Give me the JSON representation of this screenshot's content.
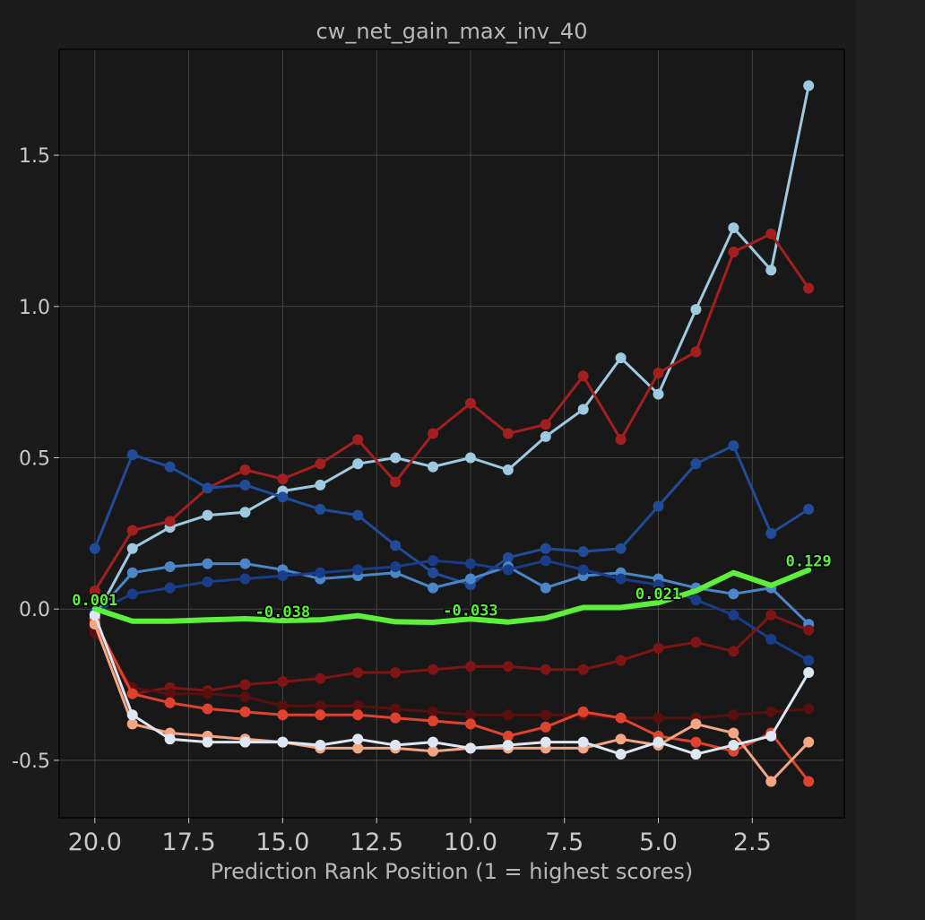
{
  "chart_data": {
    "type": "line",
    "title": "cw_net_gain_max_inv_40",
    "xlabel": "Prediction Rank Position (1 = highest scores)",
    "ylabel": "",
    "x_inverted": true,
    "xlim": [
      20.95,
      0.05
    ],
    "ylim": [
      -0.69,
      1.85
    ],
    "xticks": [
      "20.0",
      "17.5",
      "15.0",
      "12.5",
      "10.0",
      "7.5",
      "5.0",
      "2.5"
    ],
    "xtick_values": [
      20,
      17.5,
      15,
      12.5,
      10,
      7.5,
      5,
      2.5
    ],
    "yticks": [
      "1.5",
      "1.0",
      "0.5",
      "0.0",
      "-0.5"
    ],
    "ytick_values": [
      1.5,
      1.0,
      0.5,
      0.0,
      -0.5
    ],
    "grid": true,
    "x": [
      20,
      19,
      18,
      17,
      16,
      15,
      14,
      13,
      12,
      11,
      10,
      9,
      8,
      7,
      6,
      5,
      4,
      3,
      2,
      1
    ],
    "series": [
      {
        "color": "#9ecae1",
        "values": [
          -0.03,
          0.2,
          0.27,
          0.31,
          0.32,
          0.39,
          0.41,
          0.48,
          0.5,
          0.47,
          0.5,
          0.46,
          0.57,
          0.66,
          0.83,
          0.71,
          0.99,
          1.26,
          1.12,
          1.73
        ]
      },
      {
        "color": "#a31f1f",
        "values": [
          0.06,
          0.26,
          0.29,
          0.4,
          0.46,
          0.43,
          0.48,
          0.56,
          0.42,
          0.58,
          0.68,
          0.58,
          0.61,
          0.77,
          0.56,
          0.78,
          0.85,
          1.18,
          1.24,
          1.06
        ]
      },
      {
        "color": "#1f4b99",
        "values": [
          0.2,
          0.51,
          0.47,
          0.4,
          0.41,
          0.37,
          0.33,
          0.31,
          0.21,
          0.12,
          0.08,
          0.17,
          0.2,
          0.19,
          0.2,
          0.34,
          0.48,
          0.54,
          0.25,
          0.33
        ]
      },
      {
        "color": "#4a86c8",
        "values": [
          -0.02,
          0.12,
          0.14,
          0.15,
          0.15,
          0.13,
          0.1,
          0.11,
          0.12,
          0.07,
          0.1,
          0.14,
          0.07,
          0.11,
          0.12,
          0.1,
          0.07,
          0.05,
          0.07,
          -0.05
        ]
      },
      {
        "color": "#1a3d8a",
        "values": [
          -0.01,
          0.05,
          0.07,
          0.09,
          0.1,
          0.11,
          0.12,
          0.13,
          0.14,
          0.16,
          0.15,
          0.13,
          0.16,
          0.13,
          0.1,
          0.08,
          0.03,
          -0.02,
          -0.1,
          -0.17
        ]
      },
      {
        "color": "#7f1414",
        "values": [
          -0.06,
          -0.28,
          -0.26,
          -0.27,
          -0.25,
          -0.24,
          -0.23,
          -0.21,
          -0.21,
          -0.2,
          -0.19,
          -0.19,
          -0.2,
          -0.2,
          -0.17,
          -0.13,
          -0.11,
          -0.14,
          -0.02,
          -0.07
        ]
      },
      {
        "color": "#5a0f0f",
        "values": [
          -0.08,
          -0.26,
          -0.28,
          -0.28,
          -0.29,
          -0.32,
          -0.32,
          -0.32,
          -0.33,
          -0.34,
          -0.35,
          -0.35,
          -0.35,
          -0.35,
          -0.36,
          -0.36,
          -0.36,
          -0.35,
          -0.34,
          -0.33
        ]
      },
      {
        "color": "#e0432d",
        "values": [
          -0.04,
          -0.28,
          -0.31,
          -0.33,
          -0.34,
          -0.35,
          -0.35,
          -0.35,
          -0.36,
          -0.37,
          -0.38,
          -0.42,
          -0.39,
          -0.34,
          -0.36,
          -0.42,
          -0.44,
          -0.47,
          -0.41,
          -0.57
        ]
      },
      {
        "color": "#f4a582",
        "values": [
          -0.05,
          -0.38,
          -0.41,
          -0.42,
          -0.43,
          -0.44,
          -0.46,
          -0.46,
          -0.46,
          -0.47,
          -0.46,
          -0.46,
          -0.46,
          -0.46,
          -0.43,
          -0.45,
          -0.38,
          -0.41,
          -0.57,
          -0.44
        ]
      },
      {
        "color": "#dde7f3",
        "values": [
          -0.02,
          -0.35,
          -0.43,
          -0.44,
          -0.44,
          -0.44,
          -0.45,
          -0.43,
          -0.45,
          -0.44,
          -0.46,
          -0.45,
          -0.44,
          -0.44,
          -0.48,
          -0.44,
          -0.48,
          -0.45,
          -0.42,
          -0.21
        ]
      }
    ],
    "mean_series": {
      "color": "#5cf03a",
      "values": [
        0.001,
        -0.04,
        -0.04,
        -0.036,
        -0.032,
        -0.038,
        -0.036,
        -0.022,
        -0.042,
        -0.044,
        -0.033,
        -0.043,
        -0.03,
        0.005,
        0.005,
        0.021,
        0.06,
        0.12,
        0.078,
        0.129
      ]
    },
    "annotations": [
      {
        "x": 20,
        "y": 0.001,
        "text": "0.001"
      },
      {
        "x": 15,
        "y": -0.038,
        "text": "-0.038"
      },
      {
        "x": 10,
        "y": -0.033,
        "text": "-0.033"
      },
      {
        "x": 5,
        "y": 0.021,
        "text": "0.021"
      },
      {
        "x": 1,
        "y": 0.129,
        "text": "0.129"
      }
    ],
    "colors": {
      "background": "#1b1b1b",
      "axes_background": "#181818",
      "grid": "#454545",
      "spine": "#000000",
      "text": "#c9c9c9",
      "title_text": "#b0b0b0",
      "mean_label": "#5cf03a"
    }
  }
}
